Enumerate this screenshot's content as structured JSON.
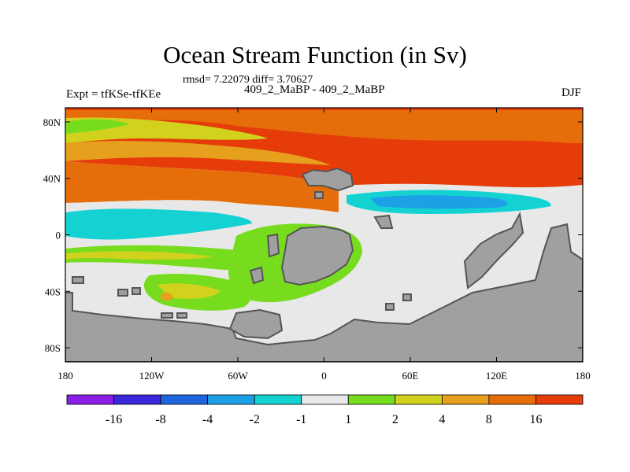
{
  "header": {
    "title": "Ocean Stream Function (in Sv)",
    "stats": "rmsd= 7.22079 diff= 3.70627",
    "expt": "Expt = tfKSe-tfKEe",
    "cases": "409_2_MaBP - 409_2_MaBP",
    "season": "DJF"
  },
  "map": {
    "lat_labels": [
      "80N",
      "40N",
      "0",
      "40S",
      "80S"
    ],
    "lat_values": [
      80,
      40,
      0,
      -40,
      -80
    ],
    "lon_labels": [
      "180",
      "120W",
      "60W",
      "0",
      "60E",
      "120E",
      "180"
    ],
    "lon_values": [
      -180,
      -120,
      -60,
      0,
      60,
      120,
      180
    ],
    "lat_range": [
      -90,
      90
    ],
    "lon_range": [
      -180,
      180
    ],
    "land_color": "#a0a0a0",
    "land_edge_color": "#555555"
  },
  "colorbar": {
    "colors": [
      "#8a1ee6",
      "#3c28dc",
      "#1e64dc",
      "#1ea0e6",
      "#14d2d2",
      "#e8e8e8",
      "#78dc1e",
      "#d2d21e",
      "#e6a01e",
      "#e66e0a",
      "#e63c0a"
    ],
    "labels": [
      "-16",
      "-8",
      "-4",
      "-2",
      "-1",
      "1",
      "2",
      "4",
      "8",
      "16"
    ]
  }
}
